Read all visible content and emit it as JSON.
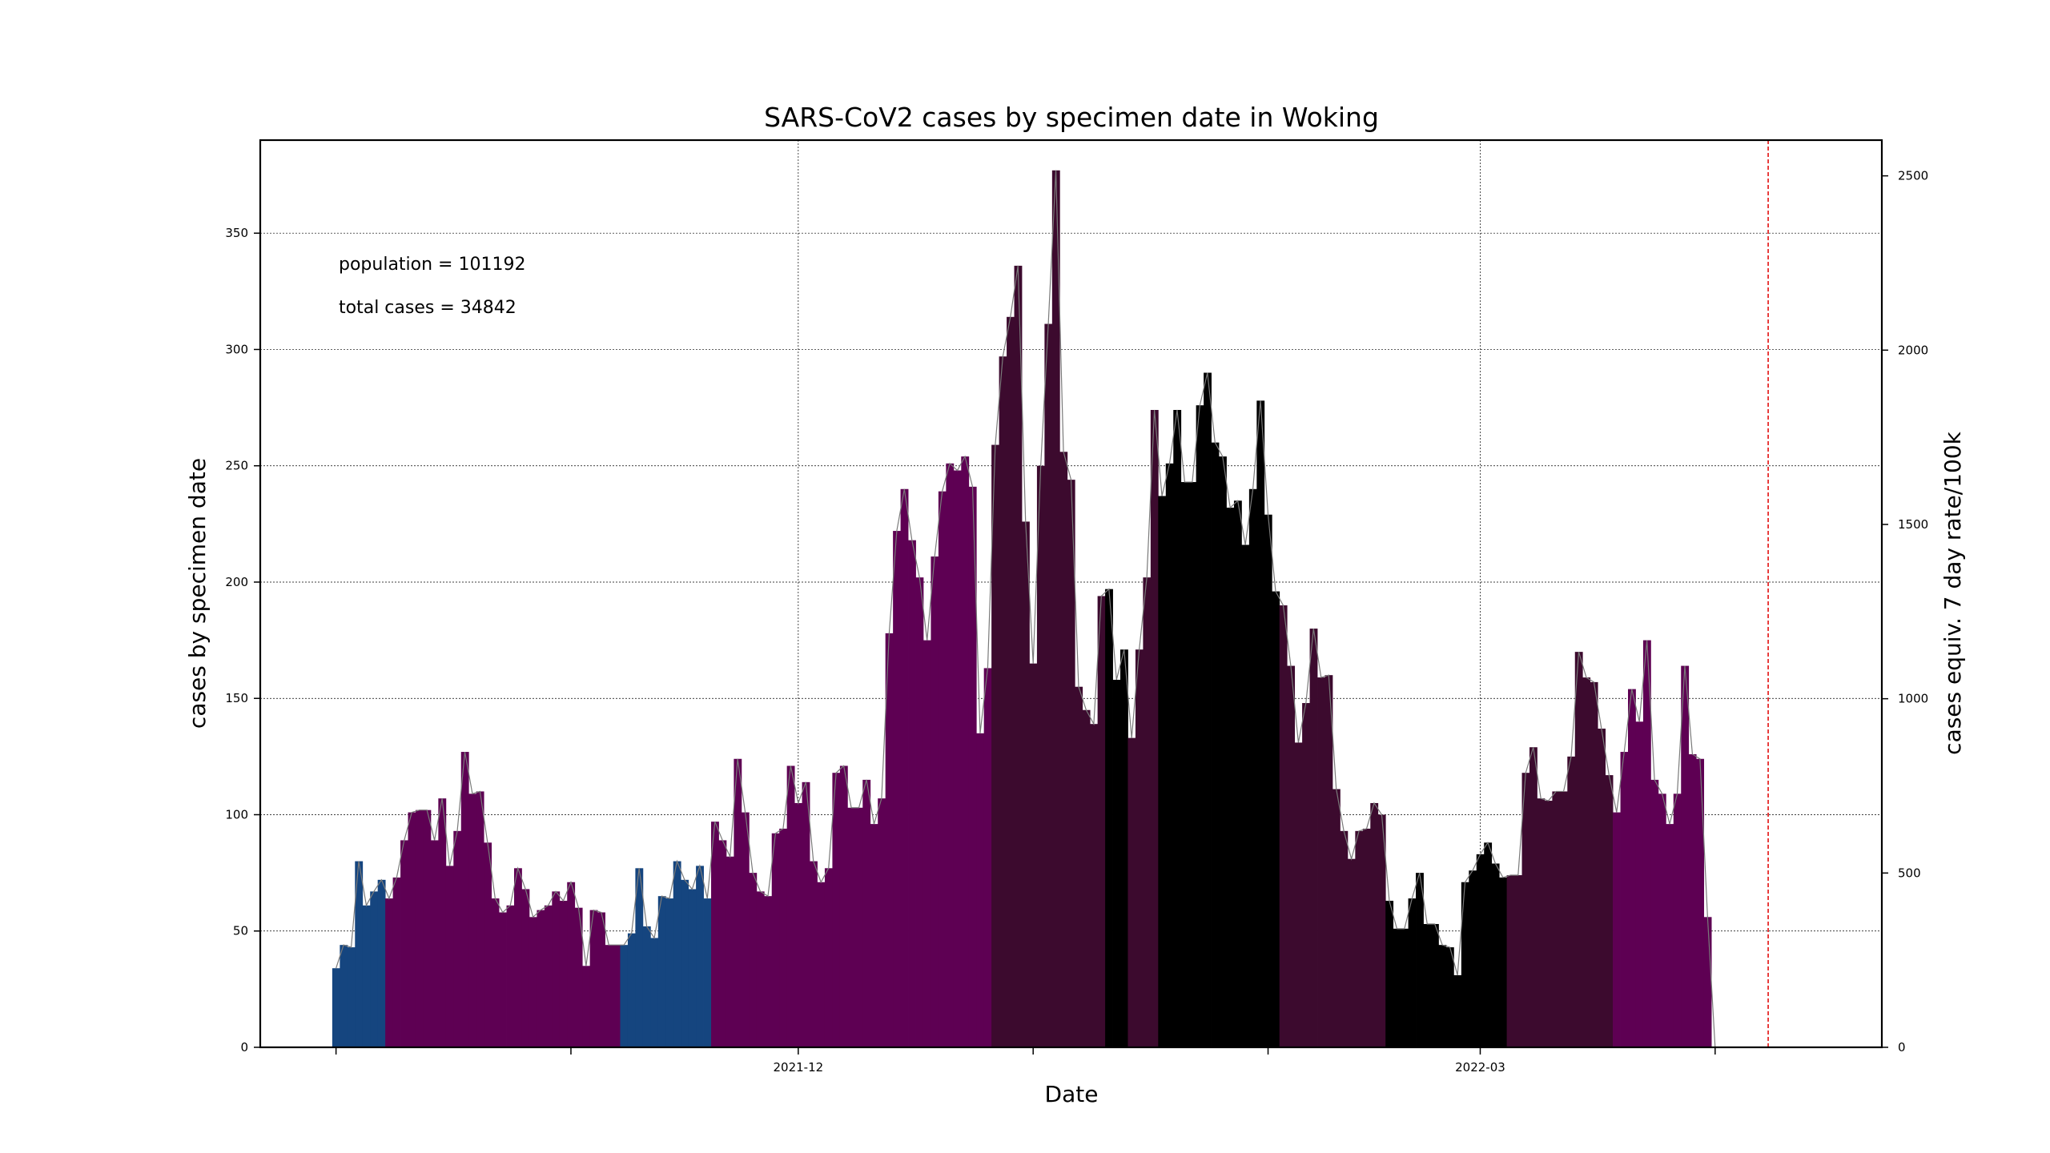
{
  "chart_data": {
    "type": "bar",
    "title": "SARS-CoV2 cases by specimen date in Woking",
    "xlabel": "Date",
    "ylabel": "cases by specimen date",
    "ylabel_right": "cases equiv. 7 day rate/100k",
    "annotations": {
      "population": "population = 101192",
      "total_cases": "total cases = 34842"
    },
    "x_start_date": "2021-10-01",
    "x_end_date": "2022-04-13",
    "xlim": [
      "2021-09-21",
      "2022-04-23"
    ],
    "ylim": [
      0,
      390
    ],
    "y_ticks": [
      0,
      50,
      100,
      150,
      200,
      250,
      300,
      350
    ],
    "right_ylim": [
      0,
      2602.5
    ],
    "right_ticks": [
      0,
      500,
      1000,
      1500,
      2000,
      2500
    ],
    "x_tick_labels": [
      {
        "date": "2021-12-01",
        "label": "2021-12"
      },
      {
        "date": "2022-03-01",
        "label": "2022-03"
      }
    ],
    "x_minor_tick_dates": [
      "2021-10-01",
      "2021-11-01",
      "2022-01-01",
      "2022-02-01",
      "2022-04-01"
    ],
    "grid": true,
    "reference_line_date": "2022-04-08",
    "provisional_from_date": "2022-04-09",
    "colors": {
      "blue": "#15457f",
      "purple": "#5e0053",
      "dark_purple": "#3c0a2e",
      "black": "#000000",
      "provisional": "#a4859c",
      "trend_line": "#7a7a7a",
      "reference_line": "#e00000"
    },
    "values": [
      34,
      44,
      43,
      80,
      61,
      67,
      72,
      64,
      73,
      89,
      101,
      102,
      102,
      89,
      107,
      78,
      93,
      127,
      109,
      110,
      88,
      64,
      58,
      61,
      77,
      68,
      56,
      59,
      61,
      67,
      63,
      71,
      60,
      35,
      59,
      58,
      44,
      44,
      44,
      49,
      77,
      52,
      47,
      65,
      64,
      80,
      72,
      68,
      78,
      64,
      97,
      89,
      82,
      124,
      101,
      75,
      67,
      65,
      92,
      94,
      121,
      105,
      114,
      80,
      71,
      77,
      118,
      121,
      103,
      103,
      115,
      96,
      107,
      178,
      222,
      240,
      218,
      202,
      175,
      211,
      239,
      251,
      248,
      254,
      241,
      135,
      163,
      259,
      297,
      314,
      336,
      226,
      165,
      250,
      311,
      377,
      256,
      244,
      155,
      145,
      139,
      194,
      197,
      158,
      171,
      133,
      171,
      202,
      274,
      237,
      251,
      274,
      243,
      243,
      276,
      290,
      260,
      254,
      232,
      235,
      216,
      240,
      278,
      229,
      196,
      190,
      164,
      131,
      148,
      180,
      159,
      160,
      111,
      93,
      81,
      93,
      94,
      105,
      100,
      63,
      51,
      51,
      64,
      75,
      53,
      53,
      44,
      43,
      31,
      71,
      76,
      83,
      88,
      79,
      73,
      74,
      74,
      118,
      129,
      107,
      106,
      110,
      110,
      125,
      170,
      159,
      157,
      137,
      117,
      101,
      127,
      154,
      140,
      175,
      115,
      109,
      96,
      109,
      164,
      126,
      124,
      56,
      0
    ],
    "band_colors": "BBBBBBBPPPPPPPPPPPPPPPPPPPPPPPPPPPPPPPBBBBBBBBBBBBPPPPPPPPPPPPPPPPPPPPPPPPPPPPPPPPPPPPPDDDDDDDDDDDDDDDKKKDDDDKKKKKKKKKKKKKKKKDDDDDDDDDDDDDDKKKKKKKKKKKKKKKKDDDDDDDDDDDDDDPPPPPPPPPPPPPBBBBBBPPPPPPPPPPPPPPDDDDDDDDDDDDDDDDDDDRRRRRR"
  }
}
